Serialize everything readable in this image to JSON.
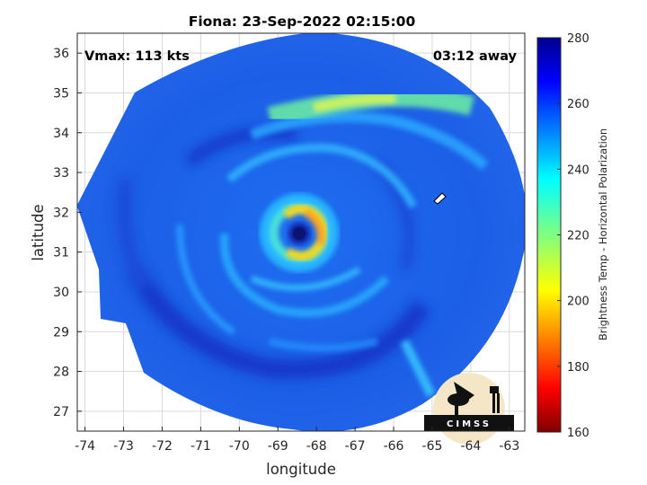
{
  "chart_data": {
    "type": "heatmap",
    "title": "Fiona: 23-Sep-2022 02:15:00",
    "xlabel": "longitude",
    "ylabel": "latitude",
    "xlim": [
      -74.2,
      -62.6
    ],
    "ylim": [
      26.5,
      36.5
    ],
    "xticks": [
      "-74",
      "-73",
      "-72",
      "-71",
      "-70",
      "-69",
      "-68",
      "-67",
      "-66",
      "-65",
      "-64",
      "-63"
    ],
    "yticks": [
      "27",
      "28",
      "29",
      "30",
      "31",
      "32",
      "33",
      "34",
      "35",
      "36"
    ],
    "grid": true,
    "annotations": {
      "vmax": "Vmax: 113 kts",
      "time_away": "03:12 away"
    },
    "colorbar": {
      "label": "Brightness Temp - Horizontal Polarization",
      "ticks": [
        "280",
        "260",
        "240",
        "220",
        "200",
        "180",
        "160"
      ],
      "range": [
        160,
        280
      ],
      "colormap": "jet"
    },
    "storm": {
      "name": "Fiona",
      "eye_center": [
        -68.3,
        31.45
      ],
      "eye_brightness_temp": 268,
      "eyewall_brightness_temp": 205,
      "background_brightness_temp": 258
    },
    "logo": "CIMSS"
  },
  "colors": {
    "background": "#ffffff",
    "grid": "#d9d9d9",
    "axis": "#262626",
    "scene_background": "#1a5ce8"
  }
}
